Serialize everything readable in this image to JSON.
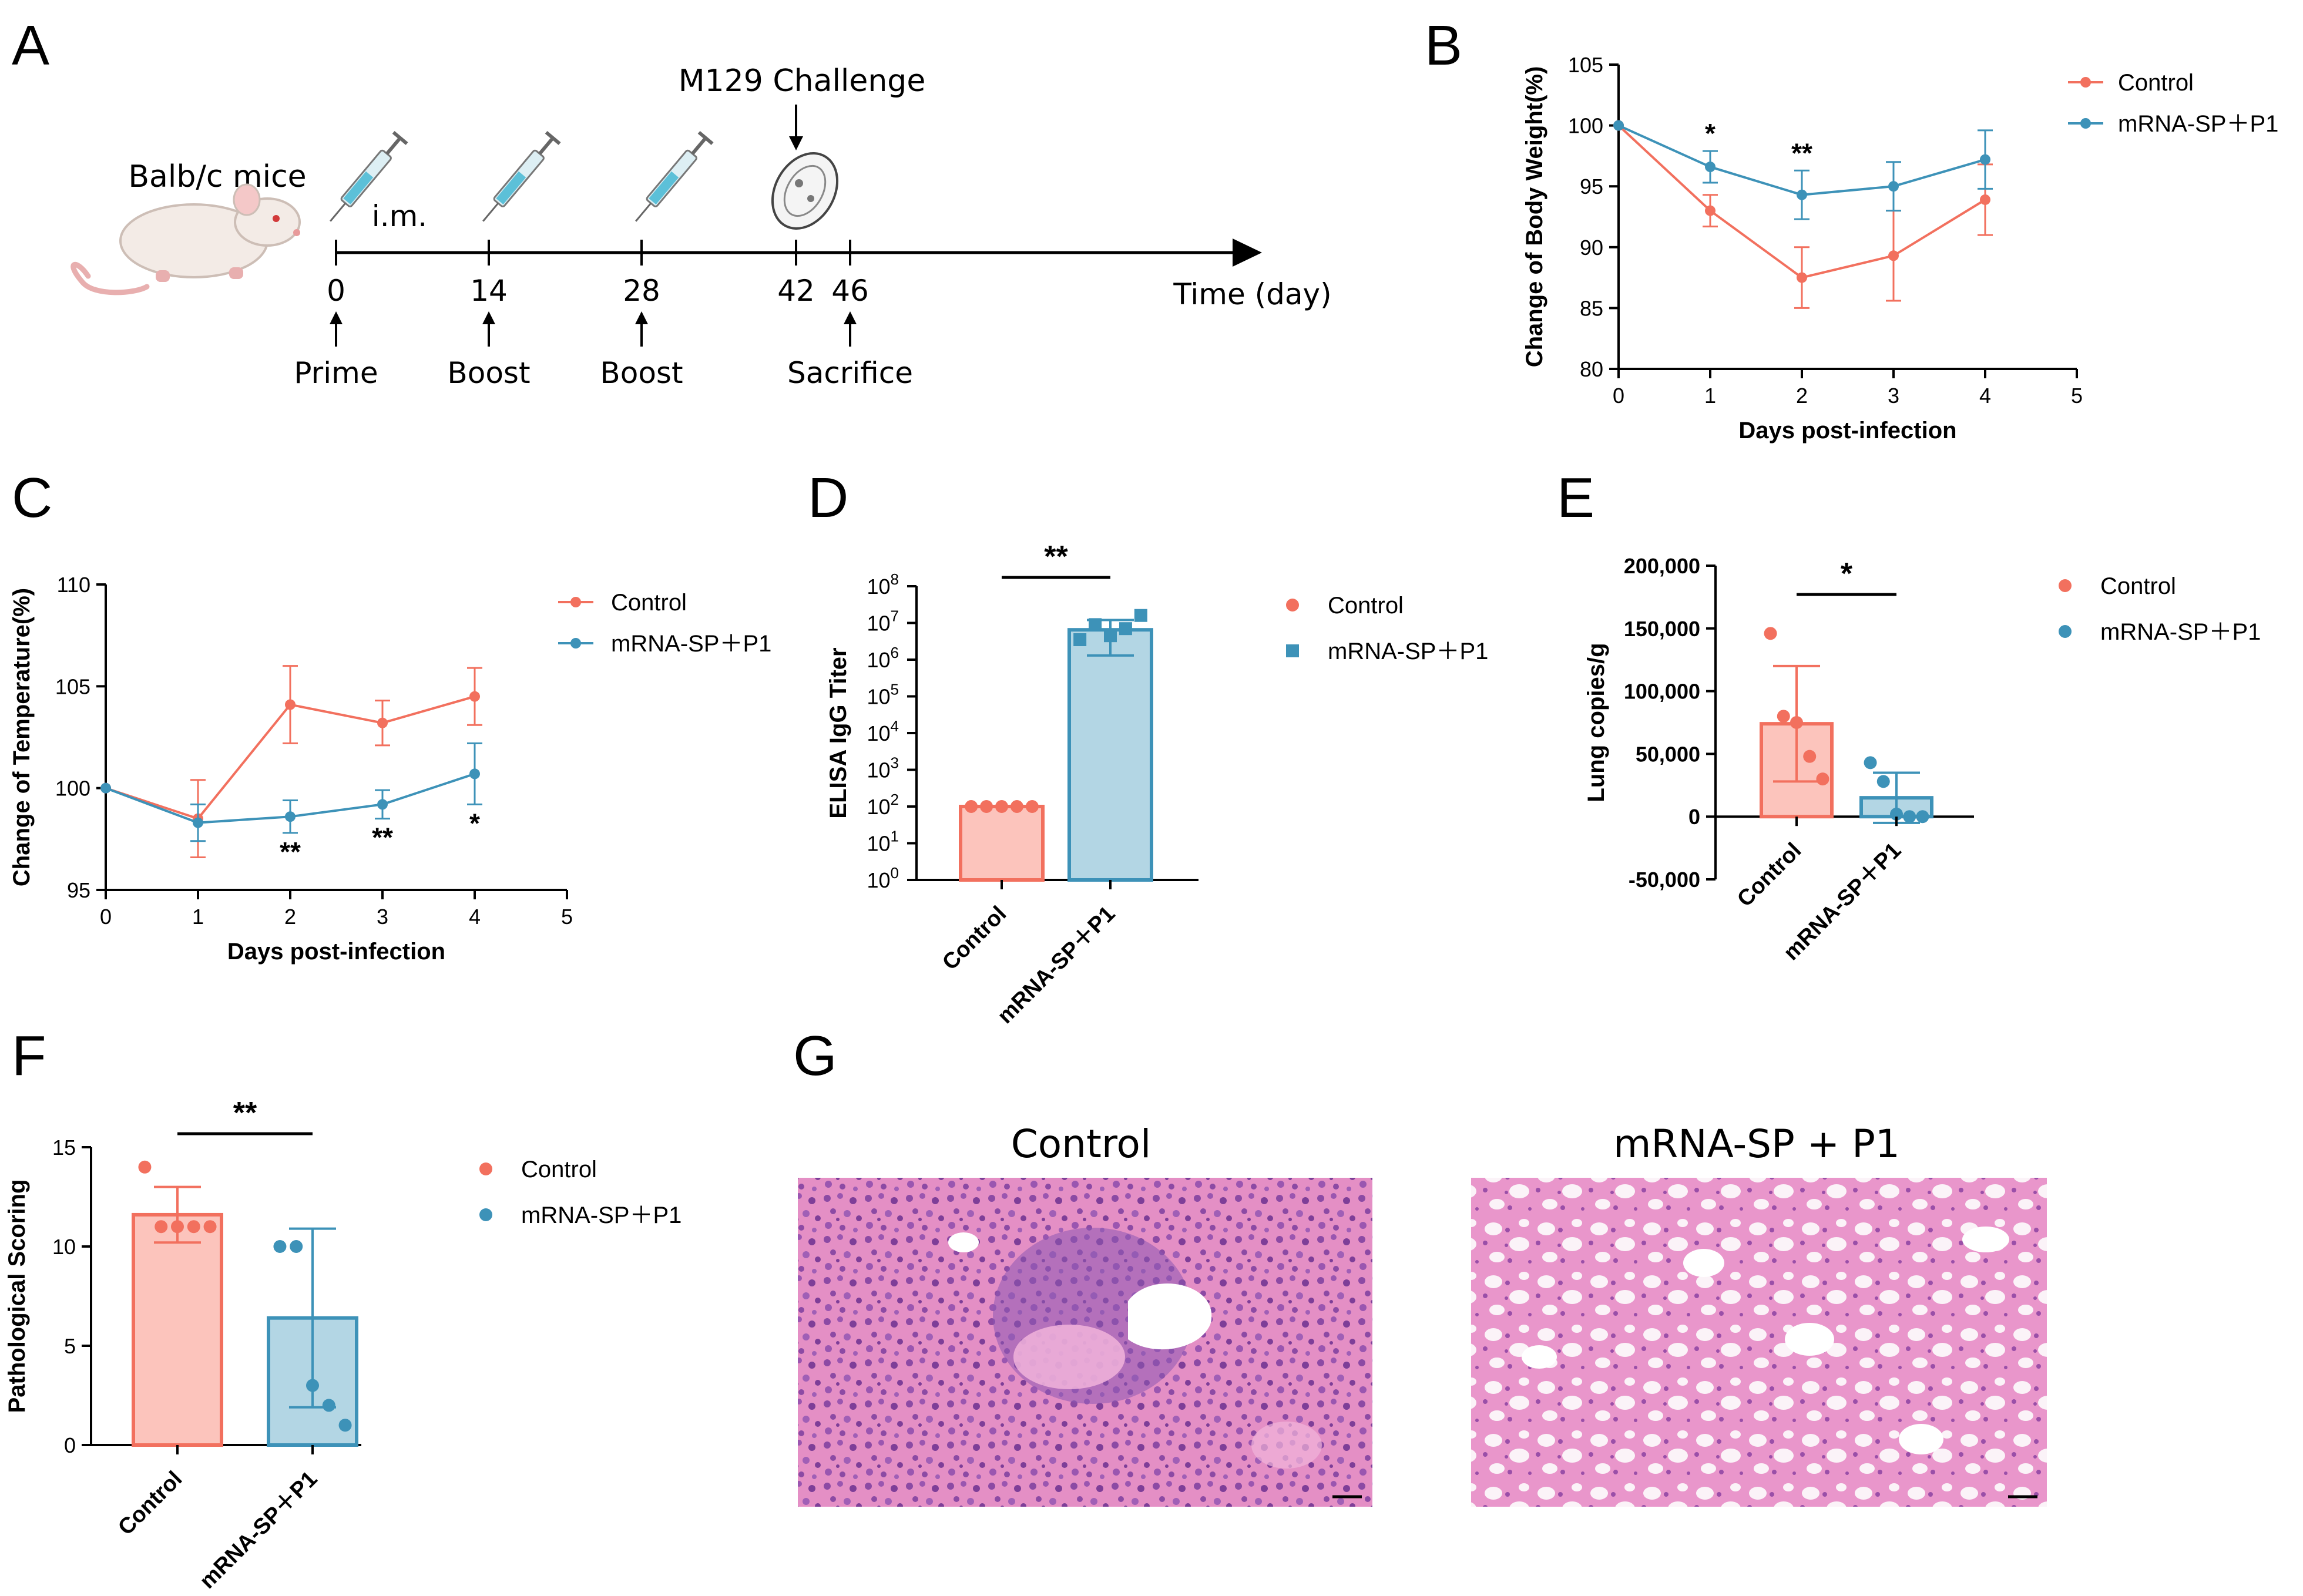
{
  "colors": {
    "control": "#F2705E",
    "control_fill": "#FCC4BC",
    "mrna": "#3D92B8",
    "mrna_fill": "#B3D6E4",
    "axis": "#000000"
  },
  "panel_labels": {
    "a": "A",
    "b": "B",
    "c": "C",
    "d": "D",
    "e": "E",
    "f": "F",
    "g": "G"
  },
  "panel_a": {
    "mouse_label": "Balb/c mice",
    "route_label": "i.m.",
    "challenge_label": "M129 Challenge",
    "time_label": "Time (day)",
    "days": [
      {
        "day": "0",
        "event": "Prime"
      },
      {
        "day": "14",
        "event": "Boost"
      },
      {
        "day": "28",
        "event": "Boost"
      },
      {
        "day": "42",
        "event": ""
      },
      {
        "day": "46",
        "event": "Sacrifice"
      }
    ],
    "icons": [
      "mouse-icon",
      "syringe-icon",
      "syringe-icon",
      "syringe-icon",
      "bacterium-icon"
    ]
  },
  "chart_data": [
    {
      "id": "B",
      "type": "line",
      "title": "",
      "xlabel": "Days post-infection",
      "ylabel": "Change of Body Weight(%)",
      "xlim": [
        0,
        5
      ],
      "ylim": [
        80,
        105
      ],
      "xticks": [
        0,
        1,
        2,
        3,
        4,
        5
      ],
      "yticks": [
        80,
        85,
        90,
        95,
        100,
        105
      ],
      "x": [
        0,
        1,
        2,
        3,
        4
      ],
      "series": [
        {
          "name": "Control",
          "values": [
            100,
            93.0,
            87.5,
            89.3,
            93.9
          ],
          "err": [
            0,
            1.3,
            2.5,
            3.7,
            2.9
          ]
        },
        {
          "name": "mRNA-SP＋P1",
          "values": [
            100,
            96.6,
            94.3,
            95.0,
            97.2
          ],
          "err": [
            0,
            1.3,
            2.0,
            2.0,
            2.4
          ]
        }
      ],
      "significance": [
        {
          "x": 1,
          "label": "*"
        },
        {
          "x": 2,
          "label": "**"
        }
      ],
      "legend": "top-right"
    },
    {
      "id": "C",
      "type": "line",
      "title": "",
      "xlabel": "Days post-infection",
      "ylabel": "Change of Temperature(%)",
      "xlim": [
        0,
        5
      ],
      "ylim": [
        95,
        110
      ],
      "xticks": [
        0,
        1,
        2,
        3,
        4,
        5
      ],
      "yticks": [
        95,
        100,
        105,
        110
      ],
      "x": [
        0,
        1,
        2,
        3,
        4
      ],
      "series": [
        {
          "name": "Control",
          "values": [
            100,
            98.5,
            104.1,
            103.2,
            104.5
          ],
          "err": [
            0,
            1.9,
            1.9,
            1.1,
            1.4
          ]
        },
        {
          "name": "mRNA-SP＋P1",
          "values": [
            100,
            98.3,
            98.6,
            99.2,
            100.7
          ],
          "err": [
            0,
            0.9,
            0.8,
            0.7,
            1.5
          ]
        }
      ],
      "significance": [
        {
          "x": 2,
          "label": "**"
        },
        {
          "x": 3,
          "label": "**"
        },
        {
          "x": 4,
          "label": "*"
        }
      ],
      "legend": "top-right"
    },
    {
      "id": "D",
      "type": "bar",
      "title": "",
      "xlabel": "",
      "ylabel": "ELISA IgG Titer",
      "scale": "log10",
      "ylim": [
        1,
        100000000
      ],
      "ytick_exponents": [
        "0",
        "1",
        "2",
        "3",
        "4",
        "5",
        "6",
        "7",
        "8"
      ],
      "categories": [
        "Control",
        "mRNA-SP＋P1"
      ],
      "values": [
        100,
        6500000
      ],
      "err_low": [
        0,
        1300000
      ],
      "err_high": [
        0,
        12000000
      ],
      "points": [
        [
          100,
          100,
          100,
          100,
          100
        ],
        [
          3500000,
          9000000,
          4500000,
          7000000,
          16000000
        ]
      ],
      "significance": "**",
      "legend": [
        {
          "name": "Control",
          "marker": "circle"
        },
        {
          "name": "mRNA-SP＋P1",
          "marker": "square"
        }
      ]
    },
    {
      "id": "E",
      "type": "bar",
      "title": "",
      "xlabel": "",
      "ylabel": "Lung copies/g",
      "ylim": [
        -50000,
        200000
      ],
      "yticks": [
        -50000,
        0,
        50000,
        100000,
        150000,
        200000
      ],
      "ytick_labels": [
        "-50,000",
        "0",
        "50,000",
        "100,000",
        "150,000",
        "200,000"
      ],
      "categories": [
        "Control",
        "mRNA-SP＋P1"
      ],
      "values": [
        74000,
        15000
      ],
      "err": [
        46000,
        20000
      ],
      "points": [
        [
          146000,
          80000,
          75000,
          48000,
          30000
        ],
        [
          43000,
          28000,
          2000,
          0,
          0
        ]
      ],
      "significance": "*",
      "legend": [
        {
          "name": "Control",
          "marker": "circle"
        },
        {
          "name": "mRNA-SP＋P1",
          "marker": "circle"
        }
      ]
    },
    {
      "id": "F",
      "type": "bar",
      "title": "",
      "xlabel": "",
      "ylabel": "Pathological Scoring",
      "ylim": [
        0,
        15
      ],
      "yticks": [
        0,
        5,
        10,
        15
      ],
      "categories": [
        "Control",
        "mRNA-SP＋P1"
      ],
      "values": [
        11.6,
        6.4
      ],
      "err": [
        1.4,
        4.5
      ],
      "points": [
        [
          14,
          11,
          11,
          11,
          11
        ],
        [
          10,
          10,
          3,
          2,
          1
        ]
      ],
      "significance": "**",
      "legend": [
        {
          "name": "Control",
          "marker": "circle"
        },
        {
          "name": "mRNA-SP＋P1",
          "marker": "circle"
        }
      ]
    }
  ],
  "panel_g": {
    "left_title": "Control",
    "right_title": "mRNA-SP + P1",
    "left_alt": "H&E lung section control",
    "right_alt": "H&E lung section vaccinated"
  }
}
